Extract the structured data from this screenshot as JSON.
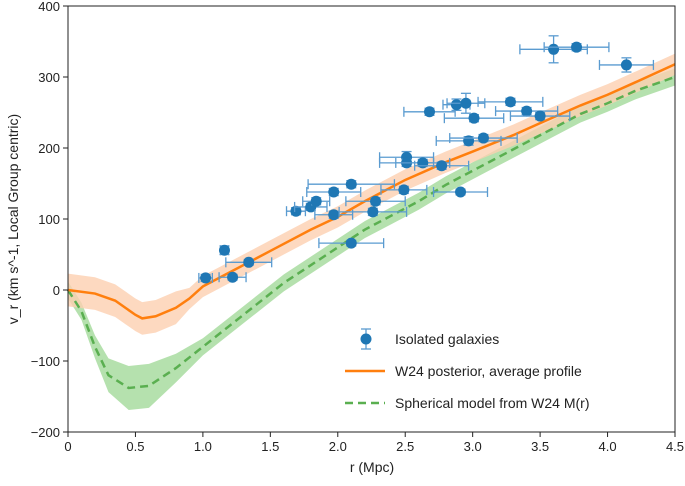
{
  "chart_data": {
    "type": "scatter",
    "xlabel": "r (Mpc)",
    "ylabel": "v_r (km s^-1, Local Group centric)",
    "xlim": [
      0,
      4.5
    ],
    "ylim": [
      -200,
      400
    ],
    "xticks": [
      "0",
      "0.5",
      "1.0",
      "1.5",
      "2.0",
      "2.5",
      "3.0",
      "3.5",
      "4.0",
      "4.5"
    ],
    "yticks": [
      "-200",
      "-100",
      "0",
      "100",
      "200",
      "300",
      "400"
    ],
    "grid": false,
    "legend_placement": "bottom-right",
    "colors": {
      "points": "#1f77b4",
      "orange": "#ff7f0e",
      "orange_band": "#fdd0b0",
      "green": "#5aaf50",
      "green_band": "#a8dca0"
    },
    "series": [
      {
        "name": "Isolated galaxies",
        "kind": "errorbar-points",
        "points": [
          {
            "r": 1.02,
            "v": 17,
            "xerr": 0.05,
            "yerr": 5
          },
          {
            "r": 1.16,
            "v": 56,
            "xerr": 0.03,
            "yerr": 6
          },
          {
            "r": 1.22,
            "v": 18,
            "xerr": 0.1,
            "yerr": 4
          },
          {
            "r": 1.34,
            "v": 39,
            "xerr": 0.17,
            "yerr": 4
          },
          {
            "r": 1.69,
            "v": 111,
            "xerr": 0.07,
            "yerr": 5
          },
          {
            "r": 1.8,
            "v": 117,
            "xerr": 0.12,
            "yerr": 5
          },
          {
            "r": 1.84,
            "v": 125,
            "xerr": 0.1,
            "yerr": 5
          },
          {
            "r": 1.97,
            "v": 138,
            "xerr": 0.2,
            "yerr": 5
          },
          {
            "r": 2.1,
            "v": 149,
            "xerr": 0.32,
            "yerr": 5
          },
          {
            "r": 1.97,
            "v": 106,
            "xerr": 0.14,
            "yerr": 5
          },
          {
            "r": 2.1,
            "v": 66,
            "xerr": 0.24,
            "yerr": 4
          },
          {
            "r": 2.28,
            "v": 125,
            "xerr": 0.22,
            "yerr": 5
          },
          {
            "r": 2.26,
            "v": 110,
            "xerr": 0.25,
            "yerr": 5
          },
          {
            "r": 2.49,
            "v": 141,
            "xerr": 0.17,
            "yerr": 5
          },
          {
            "r": 2.51,
            "v": 187,
            "xerr": 0.2,
            "yerr": 8
          },
          {
            "r": 2.51,
            "v": 179,
            "xerr": 0.2,
            "yerr": 5
          },
          {
            "r": 2.63,
            "v": 179,
            "xerr": 0.2,
            "yerr": 5
          },
          {
            "r": 2.77,
            "v": 175,
            "xerr": 0.2,
            "yerr": 5
          },
          {
            "r": 2.91,
            "v": 138,
            "xerr": 0.2,
            "yerr": 4
          },
          {
            "r": 2.68,
            "v": 251,
            "xerr": 0.19,
            "yerr": 5
          },
          {
            "r": 2.88,
            "v": 261,
            "xerr": 0.1,
            "yerr": 8
          },
          {
            "r": 2.95,
            "v": 263,
            "xerr": 0.14,
            "yerr": 14
          },
          {
            "r": 3.01,
            "v": 242,
            "xerr": 0.22,
            "yerr": 5
          },
          {
            "r": 2.97,
            "v": 210,
            "xerr": 0.24,
            "yerr": 6
          },
          {
            "r": 3.08,
            "v": 214,
            "xerr": 0.25,
            "yerr": 5
          },
          {
            "r": 3.28,
            "v": 265,
            "xerr": 0.24,
            "yerr": 5
          },
          {
            "r": 3.4,
            "v": 252,
            "xerr": 0.23,
            "yerr": 5
          },
          {
            "r": 3.5,
            "v": 245,
            "xerr": 0.22,
            "yerr": 5
          },
          {
            "r": 3.6,
            "v": 339,
            "xerr": 0.25,
            "yerr": 19
          },
          {
            "r": 3.77,
            "v": 342,
            "xerr": 0.24,
            "yerr": 5
          },
          {
            "r": 4.14,
            "v": 317,
            "xerr": 0.2,
            "yerr": 10
          }
        ]
      },
      {
        "name": "W24 posterior, average profile",
        "kind": "line-band",
        "x": [
          0,
          0.2,
          0.35,
          0.5,
          0.55,
          0.65,
          0.8,
          0.9,
          1.0,
          1.2,
          1.5,
          1.8,
          2.0,
          2.2,
          2.5,
          2.8,
          3.0,
          3.3,
          3.5,
          3.8,
          4.0,
          4.2,
          4.5
        ],
        "y": [
          0,
          -5,
          -15,
          -35,
          -40,
          -37,
          -25,
          -12,
          5,
          25,
          55,
          85,
          103,
          125,
          155,
          180,
          195,
          218,
          235,
          260,
          275,
          292,
          318
        ],
        "band": 15
      },
      {
        "name": "Spherical model from W24 M(r)",
        "kind": "dashed-line-band",
        "x": [
          0,
          0.1,
          0.2,
          0.3,
          0.45,
          0.6,
          0.8,
          1.0,
          1.2,
          1.4,
          1.6,
          1.8,
          2.0,
          2.2,
          2.4,
          2.6,
          2.8,
          3.0,
          3.2,
          3.4,
          3.6,
          3.8,
          4.0,
          4.2,
          4.5
        ],
        "y": [
          0,
          -30,
          -80,
          -120,
          -138,
          -135,
          -110,
          -80,
          -50,
          -20,
          10,
          35,
          60,
          85,
          105,
          125,
          148,
          168,
          188,
          208,
          228,
          248,
          263,
          280,
          300
        ],
        "band": 12
      }
    ]
  }
}
